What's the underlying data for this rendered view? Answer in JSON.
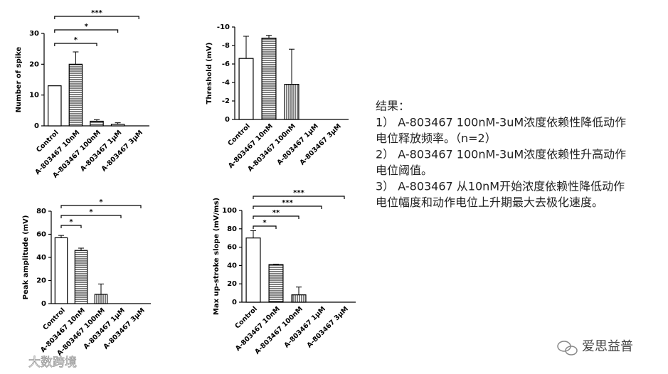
{
  "chart_data": [
    {
      "type": "bar",
      "ylabel": "Number of spike",
      "categories": [
        "Control",
        "A-803467 10nM",
        "A-803467 100nM",
        "A-803467 1μM",
        "A-803467 3μM"
      ],
      "values": [
        13,
        20,
        1.5,
        0.5,
        0
      ],
      "errors": [
        null,
        4,
        0.5,
        0.5,
        null
      ],
      "bar_patterns": [
        "none",
        "horizontal",
        "horizontal",
        "horizontal",
        "none"
      ],
      "color": "#000000",
      "ylim": [
        0,
        30
      ],
      "yticks": [
        0,
        10,
        20,
        30
      ],
      "significance": [
        {
          "pair": [
            0,
            2
          ],
          "label": "*"
        },
        {
          "pair": [
            0,
            3
          ],
          "label": "*"
        },
        {
          "pair": [
            0,
            4
          ],
          "label": "***"
        }
      ]
    },
    {
      "type": "bar",
      "ylabel": "Threshold (mV)",
      "categories": [
        "Control",
        "A-803467 10nM",
        "A-803467 100nM",
        "A-803467 1μM",
        "A-803467 3μM"
      ],
      "values": [
        -6.6,
        -8.8,
        -3.8,
        0,
        0
      ],
      "errors": [
        2.4,
        0.3,
        3.8,
        null,
        null
      ],
      "bar_patterns": [
        "none",
        "horizontal",
        "vertical",
        "none",
        "none"
      ],
      "color": "#000000",
      "ylim": [
        0,
        -10
      ],
      "yticks": [
        0,
        -2,
        -4,
        -6,
        -8,
        -10
      ],
      "significance": []
    },
    {
      "type": "bar",
      "ylabel": "Peak amplitude (mV)",
      "categories": [
        "Control",
        "A-803467 10nM",
        "A-803467 100nM",
        "A-803467 1μM",
        "A-803467 3μM"
      ],
      "values": [
        57,
        46,
        8,
        0,
        0
      ],
      "errors": [
        2,
        2,
        9,
        null,
        null
      ],
      "bar_patterns": [
        "none",
        "horizontal",
        "vertical",
        "none",
        "none"
      ],
      "color": "#000000",
      "ylim": [
        0,
        80
      ],
      "yticks": [
        0,
        20,
        40,
        60,
        80
      ],
      "significance": [
        {
          "pair": [
            0,
            1
          ],
          "label": "*"
        },
        {
          "pair": [
            0,
            3
          ],
          "label": "*"
        },
        {
          "pair": [
            0,
            4
          ],
          "label": "*"
        }
      ]
    },
    {
      "type": "bar",
      "ylabel": "Max up-stroke slope (mV/ms)",
      "categories": [
        "Control",
        "A-803467 10nM",
        "A-803467 100nM",
        "A-803467 1μM",
        "A-803467 3μM"
      ],
      "values": [
        70,
        41,
        8,
        0,
        0
      ],
      "errors": [
        8,
        0.5,
        8.5,
        null,
        null
      ],
      "bar_patterns": [
        "none",
        "horizontal",
        "vertical",
        "none",
        "none"
      ],
      "color": "#000000",
      "ylim": [
        0,
        100
      ],
      "yticks": [
        0,
        20,
        40,
        60,
        80,
        100
      ],
      "significance": [
        {
          "pair": [
            0,
            1
          ],
          "label": "*"
        },
        {
          "pair": [
            0,
            2
          ],
          "label": "**"
        },
        {
          "pair": [
            0,
            3
          ],
          "label": "***"
        },
        {
          "pair": [
            0,
            4
          ],
          "label": "***"
        }
      ]
    }
  ],
  "notes": {
    "title": "结果：",
    "lines": [
      "1） A-803467 100nM-3uM浓度依赖性降低动作",
      "电位释放频率。（n=2）",
      "2） A-803467  100nM-3uM浓度依赖性升高动作",
      "电位阈值。",
      "3） A-803467 从10nM开始浓度依赖性降低动作",
      "电位幅度和动作电位上升期最大去极化速度。"
    ]
  },
  "watermarks": [
    "爱思益普",
    "大数跨境"
  ]
}
